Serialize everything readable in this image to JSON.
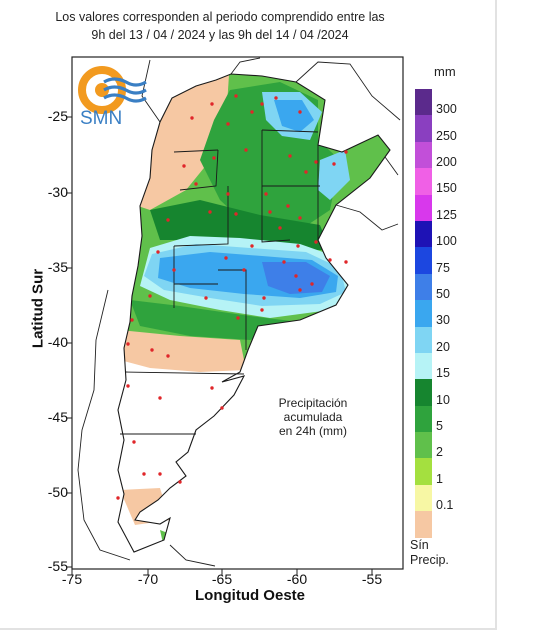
{
  "header": {
    "line1": "Los valores corresponden al periodo comprendido entre las",
    "line2": "9h del 13 / 04 / 2024  y las 9h del 14 / 04 /2024"
  },
  "logo": {
    "text": "SMN",
    "colors": {
      "orange": "#f29a1f",
      "blue": "#3a7fc4"
    }
  },
  "axes": {
    "ylabel": "Latitud Sur",
    "xlabel": "Longitud Oeste",
    "yticks": [
      "-25",
      "-30",
      "-35",
      "-40",
      "-45",
      "-50",
      "-55"
    ],
    "xticks": [
      "-75",
      "-70",
      "-65",
      "-60",
      "-55"
    ],
    "lon_range": [
      -75,
      -52
    ],
    "lat_range": [
      -55.5,
      -21.5
    ]
  },
  "annotation": {
    "line1": "Precipitación acumulada",
    "line2": "en 24h (mm)"
  },
  "legend": {
    "unit": "mm",
    "bins": [
      {
        "label": "300",
        "color": "#5b2a8c"
      },
      {
        "label": "250",
        "color": "#8a3fc0"
      },
      {
        "label": "200",
        "color": "#c24fd9"
      },
      {
        "label": "150",
        "color": "#f060e6"
      },
      {
        "label": "125",
        "color": "#d838ec"
      },
      {
        "label": "100",
        "color": "#1e12b5"
      },
      {
        "label": "75",
        "color": "#1c47e0"
      },
      {
        "label": "50",
        "color": "#3e7fe8"
      },
      {
        "label": "30",
        "color": "#3aa7ef"
      },
      {
        "label": "20",
        "color": "#7fd5f3"
      },
      {
        "label": "15",
        "color": "#b6f3f6"
      },
      {
        "label": "10",
        "color": "#16852f"
      },
      {
        "label": "5",
        "color": "#2fa33d"
      },
      {
        "label": "2",
        "color": "#60c04b"
      },
      {
        "label": "1",
        "color": "#a4e03f"
      },
      {
        "label": "0.1",
        "color": "#f7f7a4"
      },
      {
        "label": "",
        "color": "#f6c8a3"
      }
    ],
    "no_precip_line1": "Sín",
    "no_precip_line2": "Precip."
  },
  "colors": {
    "dry": "#f6c8a3",
    "green_light": "#60c04b",
    "green": "#2fa33d",
    "green_dark": "#16852f",
    "cyan": "#b6f3f6",
    "blue_light": "#7fd5f3",
    "blue": "#3aa7ef",
    "blue_mid": "#3e7fe8",
    "blue_deep": "#1c47e0",
    "station": "#e0262a"
  }
}
